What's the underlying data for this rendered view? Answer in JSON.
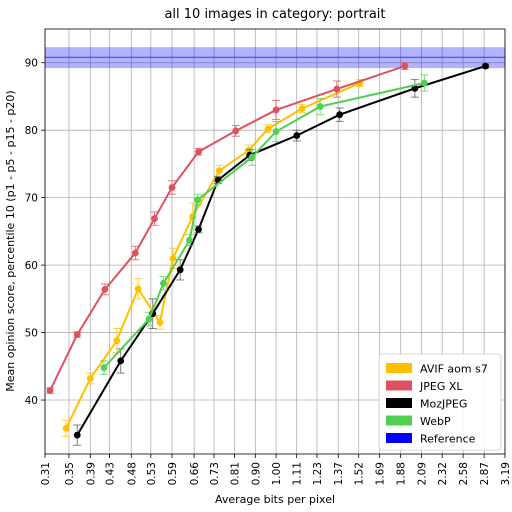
{
  "chart_data": {
    "type": "line",
    "title": "all 10 images in category: portrait",
    "xlabel": "Average bits per pixel",
    "ylabel": "Mean opinion score, percentile 10 (p1 - p5 - p15 - p20)",
    "x_scale": "log",
    "xlim": [
      0.31,
      3.19
    ],
    "ylim": [
      32,
      95
    ],
    "grid": true,
    "x_ticks": [
      "0.31",
      "0.35",
      "0.39",
      "0.43",
      "0.48",
      "0.53",
      "0.59",
      "0.66",
      "0.73",
      "0.81",
      "0.90",
      "1.00",
      "1.11",
      "1.23",
      "1.37",
      "1.52",
      "1.69",
      "1.88",
      "2.09",
      "2.32",
      "2.58",
      "2.87",
      "3.19"
    ],
    "y_ticks": [
      "40",
      "50",
      "60",
      "70",
      "80",
      "90"
    ],
    "legend_position": "bottom-right",
    "reference_band": {
      "name": "Reference",
      "color": "#0000ff",
      "y_low": 89.2,
      "y_high": 92.3,
      "y_line": 90.8
    },
    "series": [
      {
        "name": "AVIF aom s7",
        "color": "#ffc000",
        "points": [
          {
            "x": 0.345,
            "y": 35.8,
            "e": 1.2
          },
          {
            "x": 0.39,
            "y": 43.2,
            "e": 0.8
          },
          {
            "x": 0.446,
            "y": 48.8,
            "e": 1.8
          },
          {
            "x": 0.497,
            "y": 56.5,
            "e": 1.5
          },
          {
            "x": 0.555,
            "y": 51.5,
            "e": 1.0
          },
          {
            "x": 0.593,
            "y": 61.0,
            "e": 1.5
          },
          {
            "x": 0.655,
            "y": 67.2,
            "e": 2.0
          },
          {
            "x": 0.75,
            "y": 74.0,
            "e": 0.8
          },
          {
            "x": 0.87,
            "y": 77.0,
            "e": 0.8
          },
          {
            "x": 0.96,
            "y": 80.2,
            "e": 0.6
          },
          {
            "x": 1.14,
            "y": 83.2,
            "e": 0.6
          },
          {
            "x": 1.53,
            "y": 87.0,
            "e": 0.5
          }
        ]
      },
      {
        "name": "JPEG XL",
        "color": "#e05060",
        "points": [
          {
            "x": 0.318,
            "y": 41.4,
            "e": 0.4
          },
          {
            "x": 0.365,
            "y": 49.7,
            "e": 0.4
          },
          {
            "x": 0.42,
            "y": 56.4,
            "e": 0.8
          },
          {
            "x": 0.49,
            "y": 61.8,
            "e": 1.0
          },
          {
            "x": 0.54,
            "y": 66.9,
            "e": 1.0
          },
          {
            "x": 0.59,
            "y": 71.5,
            "e": 1.0
          },
          {
            "x": 0.675,
            "y": 76.8,
            "e": 0.5
          },
          {
            "x": 0.815,
            "y": 79.9,
            "e": 0.8
          },
          {
            "x": 1.0,
            "y": 83.0,
            "e": 1.4
          },
          {
            "x": 1.36,
            "y": 86.1,
            "e": 1.2
          },
          {
            "x": 1.92,
            "y": 89.5,
            "e": 0.5
          }
        ]
      },
      {
        "name": "MozJPEG",
        "color": "#000000",
        "points": [
          {
            "x": 0.365,
            "y": 34.8,
            "e": 1.5
          },
          {
            "x": 0.455,
            "y": 45.8,
            "e": 1.8
          },
          {
            "x": 0.535,
            "y": 52.8,
            "e": 2.2
          },
          {
            "x": 0.615,
            "y": 59.3,
            "e": 1.5
          },
          {
            "x": 0.675,
            "y": 65.3,
            "e": 0.5
          },
          {
            "x": 0.745,
            "y": 72.6,
            "e": 0.5
          },
          {
            "x": 0.875,
            "y": 76.3,
            "e": 0.8
          },
          {
            "x": 1.11,
            "y": 79.2,
            "e": 0.8
          },
          {
            "x": 1.38,
            "y": 82.3,
            "e": 1.0
          },
          {
            "x": 2.02,
            "y": 86.2,
            "e": 1.3
          },
          {
            "x": 2.89,
            "y": 89.5,
            "e": 0.3
          }
        ]
      },
      {
        "name": "WebP",
        "color": "#50d050",
        "points": [
          {
            "x": 0.418,
            "y": 44.8,
            "e": 1.0
          },
          {
            "x": 0.525,
            "y": 52.0,
            "e": 1.0
          },
          {
            "x": 0.565,
            "y": 57.3,
            "e": 1.0
          },
          {
            "x": 0.645,
            "y": 63.7,
            "e": 0.8
          },
          {
            "x": 0.672,
            "y": 69.7,
            "e": 0.8
          },
          {
            "x": 0.885,
            "y": 76.0,
            "e": 1.2
          },
          {
            "x": 1.0,
            "y": 79.8,
            "e": 1.5
          },
          {
            "x": 1.25,
            "y": 83.5,
            "e": 1.2
          },
          {
            "x": 2.12,
            "y": 87.0,
            "e": 1.2
          }
        ]
      }
    ]
  }
}
